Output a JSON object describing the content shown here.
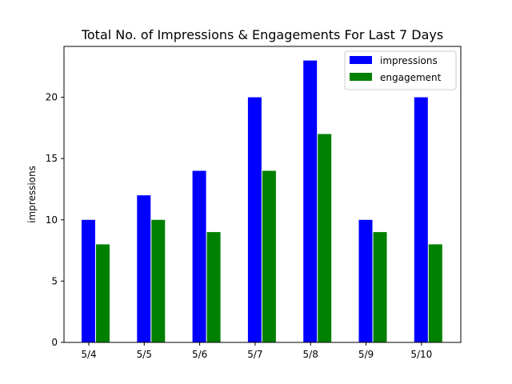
{
  "chart_data": {
    "type": "bar",
    "title": "Total No. of Impressions & Engagements For Last 7 Days",
    "xlabel": "",
    "ylabel": "impressions",
    "categories": [
      "5/4",
      "5/5",
      "5/6",
      "5/7",
      "5/8",
      "5/9",
      "5/10"
    ],
    "series": [
      {
        "name": "impressions",
        "color": "#0000ff",
        "values": [
          10,
          12,
          14,
          20,
          23,
          10,
          20
        ]
      },
      {
        "name": "engagement",
        "color": "#008000",
        "values": [
          8,
          10,
          9,
          14,
          17,
          9,
          8
        ]
      }
    ],
    "ylim": [
      0,
      24.15
    ],
    "yticks": [
      0,
      5,
      10,
      15,
      20
    ],
    "grid": false,
    "legend_position": "top-right"
  }
}
